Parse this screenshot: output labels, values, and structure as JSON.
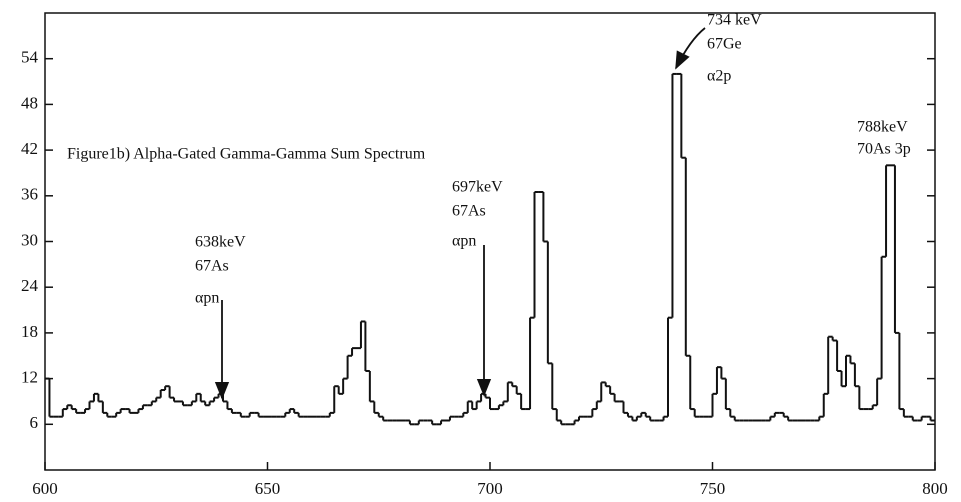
{
  "chart_data": {
    "type": "step",
    "annotations": [
      {
        "lines": [
          "Figure1b) Alpha-Gated Gamma-Gamma Sum Spectrum"
        ]
      },
      {
        "lines": [
          "638keV",
          "67As",
          "αpn"
        ]
      },
      {
        "lines": [
          "697keV",
          "67As",
          "αpn"
        ]
      },
      {
        "lines": [
          "734 keV",
          "67Ge",
          "α2p"
        ]
      },
      {
        "lines": [
          "788keV",
          "70As 3p"
        ]
      }
    ],
    "color": "#111111",
    "x": [
      600,
      601,
      602,
      603,
      604,
      605,
      606,
      607,
      608,
      609,
      610,
      611,
      612,
      613,
      614,
      615,
      616,
      617,
      618,
      619,
      620,
      621,
      622,
      623,
      624,
      625,
      626,
      627,
      628,
      629,
      630,
      631,
      632,
      633,
      634,
      635,
      636,
      637,
      638,
      639,
      640,
      641,
      642,
      643,
      644,
      645,
      646,
      647,
      648,
      649,
      650,
      651,
      652,
      653,
      654,
      655,
      656,
      657,
      658,
      659,
      660,
      661,
      662,
      663,
      664,
      665,
      666,
      667,
      668,
      669,
      670,
      671,
      672,
      673,
      674,
      675,
      676,
      677,
      678,
      679,
      680,
      681,
      682,
      683,
      684,
      685,
      686,
      687,
      688,
      689,
      690,
      691,
      692,
      693,
      694,
      695,
      696,
      697,
      698,
      699,
      700,
      701,
      702,
      703,
      704,
      705,
      706,
      707,
      708,
      709,
      710,
      711,
      712,
      713,
      714,
      715,
      716,
      717,
      718,
      719,
      720,
      721,
      722,
      723,
      724,
      725,
      726,
      727,
      728,
      729,
      730,
      731,
      732,
      733,
      734,
      735,
      736,
      737,
      738,
      739,
      740,
      741,
      742,
      743,
      744,
      745,
      746,
      747,
      748,
      749,
      750,
      751,
      752,
      753,
      754,
      755,
      756,
      757,
      758,
      759,
      760,
      761,
      762,
      763,
      764,
      765,
      766,
      767,
      768,
      769,
      770,
      771,
      772,
      773,
      774,
      775,
      776,
      777,
      778,
      779,
      780,
      781,
      782,
      783,
      784,
      785,
      786,
      787,
      788,
      789,
      790,
      791,
      792,
      793,
      794,
      795,
      796,
      797,
      798,
      799
    ],
    "values": [
      12,
      7,
      7,
      7,
      8,
      8.5,
      8,
      7.5,
      7.5,
      8,
      9,
      10,
      9,
      7.5,
      7,
      7,
      7.5,
      8,
      8,
      7.5,
      7.5,
      8,
      8.5,
      8.5,
      9,
      9.5,
      10.5,
      11,
      9.5,
      9,
      9,
      8.5,
      8.5,
      9,
      10,
      9,
      8.5,
      9,
      9.5,
      10,
      9,
      8,
      7.5,
      7.5,
      7,
      7,
      7.5,
      7.5,
      7,
      7,
      7,
      7,
      7,
      7,
      7.5,
      8,
      7.5,
      7,
      7,
      7,
      7,
      7,
      7,
      7,
      7.5,
      11,
      10,
      12,
      15,
      16,
      16,
      19.5,
      13,
      9,
      7.5,
      7,
      6.5,
      6.5,
      6.5,
      6.5,
      6.5,
      6.5,
      6,
      6,
      6.5,
      6.5,
      6.5,
      6,
      6,
      6.5,
      6.5,
      7,
      7,
      7,
      7.5,
      9,
      8,
      9,
      10,
      9.5,
      8,
      8,
      8.5,
      9,
      11.5,
      11,
      10,
      8,
      8,
      20,
      36.5,
      36.5,
      30,
      14,
      8,
      6.5,
      6,
      6,
      6,
      6.5,
      7,
      7,
      7,
      8,
      9,
      11.5,
      11,
      10,
      9,
      9,
      7.5,
      7,
      6.5,
      7,
      7.5,
      7,
      6.5,
      6.5,
      6.5,
      7,
      20,
      52,
      52,
      41,
      15,
      8,
      7,
      7,
      7,
      7,
      10,
      13.5,
      12,
      8,
      7,
      6.5,
      6.5,
      6.5,
      6.5,
      6.5,
      6.5,
      6.5,
      6.5,
      7,
      7.5,
      7.5,
      7,
      6.5,
      6.5,
      6.5,
      6.5,
      6.5,
      6.5,
      6.5,
      7,
      10,
      17.5,
      17,
      13,
      11,
      15,
      14,
      11,
      8,
      8,
      8,
      8.5,
      12,
      28,
      40,
      40,
      18,
      8,
      7,
      7,
      6.5,
      6.5,
      7,
      7,
      6.5
    ],
    "xlim": [
      600,
      800
    ],
    "ylim": [
      0,
      60
    ],
    "xticks": [
      600,
      650,
      700,
      750,
      800
    ],
    "yticks": [
      6,
      12,
      18,
      24,
      30,
      36,
      42,
      48,
      54
    ]
  }
}
